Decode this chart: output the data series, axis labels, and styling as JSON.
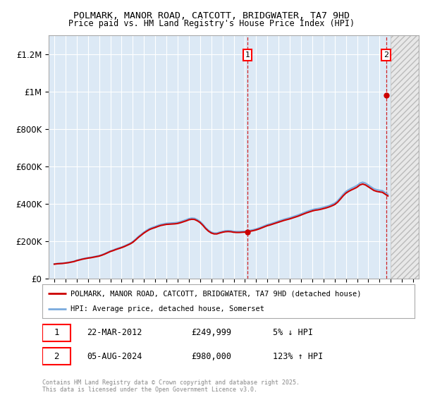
{
  "title": "POLMARK, MANOR ROAD, CATCOTT, BRIDGWATER, TA7 9HD",
  "subtitle": "Price paid vs. HM Land Registry's House Price Index (HPI)",
  "background_color": "#dce9f5",
  "hpi_color": "#7aaadd",
  "property_color": "#cc0000",
  "ylim": [
    0,
    1300000
  ],
  "yticks": [
    0,
    200000,
    400000,
    600000,
    800000,
    1000000,
    1200000
  ],
  "ytick_labels": [
    "£0",
    "£200K",
    "£400K",
    "£600K",
    "£800K",
    "£1M",
    "£1.2M"
  ],
  "xmin": 1994.5,
  "xmax": 2027.5,
  "sale1_year": 2012.22,
  "sale1_price": 249999,
  "sale2_year": 2024.58,
  "sale2_price": 980000,
  "sale1_label": "1",
  "sale2_label": "2",
  "sale1_date": "22-MAR-2012",
  "sale1_amount": "£249,999",
  "sale1_hpi": "5% ↓ HPI",
  "sale2_date": "05-AUG-2024",
  "sale2_amount": "£980,000",
  "sale2_hpi": "123% ↑ HPI",
  "legend_line1": "POLMARK, MANOR ROAD, CATCOTT, BRIDGWATER, TA7 9HD (detached house)",
  "legend_line2": "HPI: Average price, detached house, Somerset",
  "footer": "Contains HM Land Registry data © Crown copyright and database right 2025.\nThis data is licensed under the Open Government Licence v3.0.",
  "future_start_year": 2025.0,
  "hpi_data_years": [
    1995,
    1995.25,
    1995.5,
    1995.75,
    1996,
    1996.25,
    1996.5,
    1996.75,
    1997,
    1997.25,
    1997.5,
    1997.75,
    1998,
    1998.25,
    1998.5,
    1998.75,
    1999,
    1999.25,
    1999.5,
    1999.75,
    2000,
    2000.25,
    2000.5,
    2000.75,
    2001,
    2001.25,
    2001.5,
    2001.75,
    2002,
    2002.25,
    2002.5,
    2002.75,
    2003,
    2003.25,
    2003.5,
    2003.75,
    2004,
    2004.25,
    2004.5,
    2004.75,
    2005,
    2005.25,
    2005.5,
    2005.75,
    2006,
    2006.25,
    2006.5,
    2006.75,
    2007,
    2007.25,
    2007.5,
    2007.75,
    2008,
    2008.25,
    2008.5,
    2008.75,
    2009,
    2009.25,
    2009.5,
    2009.75,
    2010,
    2010.25,
    2010.5,
    2010.75,
    2011,
    2011.25,
    2011.5,
    2011.75,
    2012,
    2012.25,
    2012.5,
    2012.75,
    2013,
    2013.25,
    2013.5,
    2013.75,
    2014,
    2014.25,
    2014.5,
    2014.75,
    2015,
    2015.25,
    2015.5,
    2015.75,
    2016,
    2016.25,
    2016.5,
    2016.75,
    2017,
    2017.25,
    2017.5,
    2017.75,
    2018,
    2018.25,
    2018.5,
    2018.75,
    2019,
    2019.25,
    2019.5,
    2019.75,
    2020,
    2020.25,
    2020.5,
    2020.75,
    2021,
    2021.25,
    2021.5,
    2021.75,
    2022,
    2022.25,
    2022.5,
    2022.75,
    2023,
    2023.25,
    2023.5,
    2023.75,
    2024,
    2024.25,
    2024.5,
    2024.75
  ],
  "hpi_data_values": [
    78000,
    80000,
    81000,
    82000,
    84000,
    86000,
    89000,
    92000,
    97000,
    101000,
    105000,
    108000,
    111000,
    113000,
    116000,
    119000,
    122000,
    127000,
    133000,
    140000,
    147000,
    152000,
    158000,
    163000,
    168000,
    174000,
    181000,
    188000,
    197000,
    210000,
    224000,
    236000,
    248000,
    258000,
    267000,
    273000,
    278000,
    284000,
    289000,
    292000,
    295000,
    296000,
    297000,
    298000,
    300000,
    304000,
    309000,
    314000,
    320000,
    323000,
    322000,
    315000,
    305000,
    290000,
    272000,
    258000,
    248000,
    243000,
    243000,
    248000,
    252000,
    255000,
    256000,
    255000,
    252000,
    251000,
    251000,
    252000,
    253000,
    255000,
    258000,
    261000,
    265000,
    270000,
    276000,
    282000,
    288000,
    292000,
    297000,
    302000,
    307000,
    312000,
    317000,
    321000,
    325000,
    330000,
    335000,
    340000,
    346000,
    352000,
    358000,
    363000,
    368000,
    372000,
    374000,
    377000,
    381000,
    385000,
    390000,
    396000,
    403000,
    415000,
    432000,
    450000,
    465000,
    475000,
    483000,
    490000,
    498000,
    510000,
    515000,
    510000,
    500000,
    490000,
    480000,
    475000,
    472000,
    470000,
    460000,
    450000
  ],
  "property_data_years": [
    2012.22,
    2024.58
  ],
  "property_data_values": [
    249999,
    980000
  ]
}
